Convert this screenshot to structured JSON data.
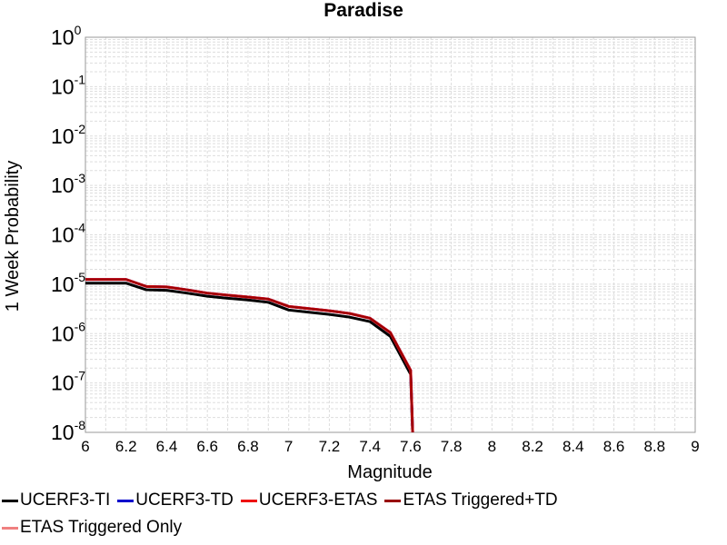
{
  "chart_data": {
    "type": "line",
    "title": "Paradise",
    "xlabel": "Magnitude",
    "ylabel": "1 Week Probability",
    "xlim": [
      6,
      9
    ],
    "ylim": [
      1e-08,
      1
    ],
    "yscale": "log",
    "grid": true,
    "legend_position": "bottom",
    "x_ticks": [
      "6",
      "6.2",
      "6.4",
      "6.6",
      "6.8",
      "7",
      "7.2",
      "7.4",
      "7.6",
      "7.8",
      "8",
      "8.2",
      "8.4",
      "8.6",
      "8.8",
      "9"
    ],
    "y_ticks": [
      {
        "base": "10",
        "exp": "0"
      },
      {
        "base": "10",
        "exp": "-1"
      },
      {
        "base": "10",
        "exp": "-2"
      },
      {
        "base": "10",
        "exp": "-3"
      },
      {
        "base": "10",
        "exp": "-4"
      },
      {
        "base": "10",
        "exp": "-5"
      },
      {
        "base": "10",
        "exp": "-6"
      },
      {
        "base": "10",
        "exp": "-7"
      },
      {
        "base": "10",
        "exp": "-8"
      }
    ],
    "series": [
      {
        "name": "UCERF3-TI",
        "color": "#000000",
        "x": [
          6.0,
          6.1,
          6.2,
          6.3,
          6.4,
          6.5,
          6.6,
          6.7,
          6.8,
          6.9,
          7.0,
          7.1,
          7.2,
          7.3,
          7.4,
          7.5,
          7.6,
          7.61
        ],
        "y": [
          1.05e-05,
          1.05e-05,
          1.05e-05,
          7.7e-06,
          7.5e-06,
          6.6e-06,
          5.7e-06,
          5.2e-06,
          4.8e-06,
          4.3e-06,
          3e-06,
          2.7e-06,
          2.45e-06,
          2.15e-06,
          1.75e-06,
          8.8e-07,
          1.5e-07,
          1e-08
        ]
      },
      {
        "name": "UCERF3-TD",
        "color": "#0000cc",
        "x": [
          6.0,
          6.1,
          6.2,
          6.3,
          6.4,
          6.5,
          6.6,
          6.7,
          6.8,
          6.9,
          7.0,
          7.1,
          7.2,
          7.3,
          7.4,
          7.5,
          7.6,
          7.61
        ],
        "y": [
          1.25e-05,
          1.25e-05,
          1.25e-05,
          9e-06,
          8.8e-06,
          7.7e-06,
          6.6e-06,
          6e-06,
          5.5e-06,
          5e-06,
          3.55e-06,
          3.2e-06,
          2.9e-06,
          2.55e-06,
          2.05e-06,
          1.05e-06,
          1.8e-07,
          1e-08
        ]
      },
      {
        "name": "UCERF3-ETAS",
        "color": "#ee1111",
        "x": [
          6.0,
          6.1,
          6.2,
          6.3,
          6.4,
          6.5,
          6.6,
          6.7,
          6.8,
          6.9,
          7.0,
          7.1,
          7.2,
          7.3,
          7.4,
          7.5,
          7.6,
          7.61
        ],
        "y": [
          1.25e-05,
          1.25e-05,
          1.25e-05,
          9e-06,
          8.8e-06,
          7.7e-06,
          6.6e-06,
          6e-06,
          5.5e-06,
          5e-06,
          3.55e-06,
          3.2e-06,
          2.9e-06,
          2.55e-06,
          2.05e-06,
          1.05e-06,
          1.8e-07,
          1e-08
        ]
      },
      {
        "name": "ETAS Triggered+TD",
        "color": "#990000",
        "x": [
          6.0,
          6.1,
          6.2,
          6.3,
          6.4,
          6.5,
          6.6,
          6.7,
          6.8,
          6.9,
          7.0,
          7.1,
          7.2,
          7.3,
          7.4,
          7.5,
          7.6,
          7.61
        ],
        "y": [
          1.25e-05,
          1.25e-05,
          1.25e-05,
          9e-06,
          8.8e-06,
          7.7e-06,
          6.6e-06,
          6e-06,
          5.5e-06,
          5e-06,
          3.55e-06,
          3.2e-06,
          2.9e-06,
          2.55e-06,
          2.05e-06,
          1.05e-06,
          1.8e-07,
          1e-08
        ]
      },
      {
        "name": "ETAS Triggered Only",
        "color": "#f08080",
        "x": [],
        "y": []
      }
    ]
  }
}
